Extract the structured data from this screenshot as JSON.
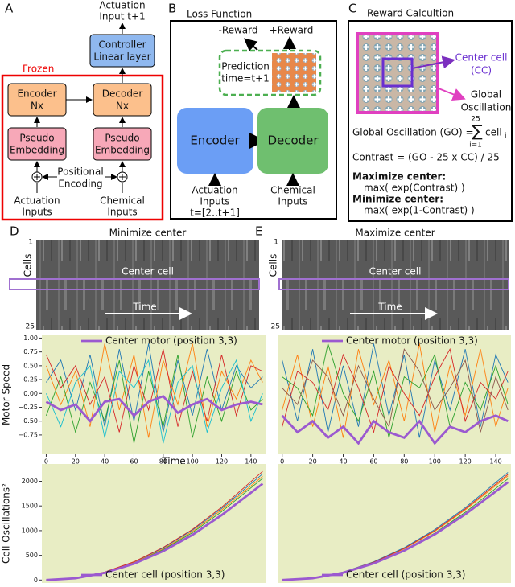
{
  "panel_a": {
    "label": "A",
    "output": [
      "Actuation",
      "Input t+1"
    ],
    "frozen": "Frozen",
    "controller": [
      "Controller",
      "Linear layer"
    ],
    "encoder": [
      "Encoder",
      "Nx"
    ],
    "decoder": [
      "Decoder",
      "Nx"
    ],
    "embed_left": [
      "Pseudo",
      "Embedding"
    ],
    "embed_right": [
      "Pseudo",
      "Embedding"
    ],
    "positional": [
      "Positional",
      "Encoding"
    ],
    "input_left": [
      "Actuation",
      "Inputs"
    ],
    "input_right": [
      "Chemical",
      "Inputs"
    ]
  },
  "panel_b": {
    "label": "B",
    "title": "Loss Function",
    "neg_reward": "-Reward",
    "pos_reward": "+Reward",
    "prediction": [
      "Prediction",
      "time=t+1"
    ],
    "encoder": "Encoder",
    "decoder": "Decoder",
    "input_left": [
      "Actuation",
      "Inputs",
      "t=[2..t+1]"
    ],
    "input_right": [
      "Chemical",
      "Inputs"
    ]
  },
  "panel_c": {
    "label": "C",
    "title": "Reward Calcultion",
    "center_cell": [
      "Center cell",
      "(CC)"
    ],
    "global": [
      "Global",
      "Oscillation"
    ],
    "go_formula": "Global Oscillation (GO) =",
    "sum_symbol": "∑",
    "sum_top": "25",
    "sum_bottom": "i=1",
    "sum_term": "cell",
    "sum_index": "i",
    "contrast": "Contrast = (GO - 25 x CC) / 25",
    "max_head": "Maximize center:",
    "max_expr": "max( exp(Contrast) )",
    "min_head": "Minimize center:",
    "min_expr": "max( exp(1-Contrast) )"
  },
  "heatmaps": [
    {
      "label": "D",
      "title": "Minimize center",
      "y_label": "Cells",
      "top_tick": 1,
      "bottom_tick": 25,
      "center": "Center cell",
      "time": "Time"
    },
    {
      "label": "E",
      "title": "Maximize center",
      "y_label": "Cells",
      "top_tick": 1,
      "bottom_tick": 25,
      "center": "Center cell",
      "time": "Time"
    }
  ],
  "chart_data": [
    {
      "type": "line",
      "y_label": "Motor Speed",
      "x_label": "Time",
      "legend": "upper center",
      "xlim": [
        -3,
        150
      ],
      "ylim": [
        -1.1,
        1.05
      ],
      "xticks": [
        0,
        20,
        40,
        60,
        80,
        100,
        120,
        140
      ],
      "yticks": [
        {
          "value": 1,
          "label": "1.00"
        },
        {
          "value": 0.75,
          "label": "0.75"
        },
        {
          "value": 0.5,
          "label": "0.50"
        },
        {
          "value": 0.25,
          "label": "0.25"
        },
        {
          "value": 0,
          "label": "0.00"
        },
        {
          "value": -0.25,
          "label": "−0.25"
        },
        {
          "value": -0.5,
          "label": "−0.50"
        },
        {
          "value": -0.75,
          "label": "−0.75"
        }
      ],
      "x": [
        0,
        10,
        20,
        30,
        40,
        50,
        60,
        70,
        80,
        90,
        100,
        110,
        120,
        130,
        140,
        148
      ],
      "series": [
        {
          "name": "Center motor (position 3,3)",
          "color": "#9b59d0",
          "values": [
            -0.15,
            -0.3,
            -0.2,
            -0.5,
            -0.15,
            -0.1,
            -0.4,
            -0.15,
            -0.05,
            -0.35,
            -0.2,
            -0.1,
            -0.3,
            -0.2,
            -0.15,
            -0.2
          ]
        },
        {
          "color": "#1f77b4",
          "values": [
            0.2,
            0.6,
            -0.3,
            0.7,
            -0.6,
            0.8,
            -0.5,
            0.9,
            -0.7,
            0.6,
            -0.4,
            0.8,
            -0.3,
            0.5,
            0.1,
            0.3
          ]
        },
        {
          "color": "#ff7f0e",
          "values": [
            0.5,
            -0.2,
            0.4,
            -0.6,
            0.9,
            -0.3,
            0.7,
            -0.8,
            0.6,
            -0.2,
            0.9,
            -0.6,
            0.4,
            -0.1,
            0.6,
            0.2
          ]
        },
        {
          "color": "#2ca02c",
          "values": [
            -0.4,
            0.3,
            -0.7,
            0.2,
            -0.5,
            0.6,
            -0.9,
            0.4,
            -0.6,
            0.7,
            -0.8,
            0.3,
            -0.5,
            0.4,
            -0.3,
            -0.1
          ]
        },
        {
          "color": "#d62728",
          "values": [
            0.7,
            0.1,
            0.5,
            -0.2,
            0.3,
            -0.7,
            0.5,
            -0.3,
            0.8,
            -0.6,
            0.4,
            -0.5,
            0.7,
            -0.4,
            0.5,
            0.4
          ]
        },
        {
          "color": "#17becf",
          "values": [
            0.0,
            -0.6,
            0.2,
            0.5,
            -0.8,
            0.4,
            0.1,
            0.6,
            -0.9,
            0.2,
            0.5,
            -0.7,
            0.1,
            0.6,
            -0.5,
            0.0
          ]
        }
      ]
    },
    {
      "type": "line",
      "legend": "upper center",
      "xlim": [
        -3,
        150
      ],
      "ylim": [
        -1.1,
        1.05
      ],
      "xticks": [
        0,
        20,
        40,
        60,
        80,
        100,
        120,
        140
      ],
      "x": [
        0,
        10,
        20,
        30,
        40,
        50,
        60,
        70,
        80,
        90,
        100,
        110,
        120,
        130,
        140,
        148
      ],
      "series": [
        {
          "name": "Center motor (position 3,3)",
          "color": "#9b59d0",
          "values": [
            -0.4,
            -0.7,
            -0.5,
            -0.8,
            -0.6,
            -0.9,
            -0.5,
            -0.7,
            -0.8,
            -0.5,
            -0.9,
            -0.6,
            -0.7,
            -0.5,
            -0.4,
            -0.5
          ]
        },
        {
          "color": "#1f77b4",
          "values": [
            0.6,
            -0.5,
            0.8,
            -0.7,
            0.5,
            -0.6,
            0.9,
            -0.4,
            0.7,
            -0.8,
            0.6,
            -0.3,
            0.8,
            -0.6,
            0.7,
            0.2
          ]
        },
        {
          "color": "#ff7f0e",
          "values": [
            -0.3,
            0.7,
            -0.6,
            0.5,
            -0.8,
            0.8,
            -0.2,
            0.6,
            -0.5,
            0.9,
            -0.7,
            0.5,
            -0.4,
            0.8,
            -0.6,
            0.1
          ]
        },
        {
          "color": "#2ca02c",
          "values": [
            0.3,
            0.1,
            -0.4,
            0.9,
            0.0,
            -0.5,
            0.4,
            -0.8,
            0.3,
            0.1,
            0.7,
            -0.6,
            0.2,
            -0.3,
            0.5,
            -0.2
          ]
        },
        {
          "color": "#d62728",
          "values": [
            -0.6,
            0.4,
            0.2,
            -0.3,
            0.7,
            0.1,
            -0.7,
            0.5,
            0.0,
            -0.4,
            0.3,
            0.8,
            -0.5,
            0.2,
            -0.1,
            0.4
          ]
        },
        {
          "color": "#8c564b",
          "values": [
            0.1,
            -0.2,
            0.6,
            0.3,
            -0.4,
            0.5,
            -0.1,
            -0.6,
            0.8,
            0.4,
            -0.3,
            0.1,
            0.6,
            -0.7,
            0.3,
            -0.3
          ]
        }
      ]
    },
    {
      "type": "line",
      "y_label": "Cell Oscillations²",
      "legend": "lower center",
      "xlim": [
        -3,
        150
      ],
      "ylim": [
        -60,
        2350
      ],
      "yticks": [
        0,
        500,
        1000,
        1500,
        2000
      ],
      "x": [
        0,
        20,
        40,
        60,
        80,
        100,
        120,
        148
      ],
      "series": [
        {
          "name": "Center cell (position 3,3)",
          "color": "#9b59d0",
          "values": [
            0,
            35,
            145,
            330,
            585,
            915,
            1315,
            1950
          ]
        },
        {
          "color": "#1f77b4",
          "values": [
            0,
            40,
            160,
            365,
            650,
            1010,
            1450,
            2150
          ]
        },
        {
          "color": "#ff7f0e",
          "values": [
            0,
            39,
            155,
            355,
            630,
            985,
            1420,
            2100
          ]
        },
        {
          "color": "#2ca02c",
          "values": [
            0,
            38,
            152,
            345,
            615,
            960,
            1385,
            2060
          ]
        },
        {
          "color": "#d62728",
          "values": [
            0,
            41,
            163,
            370,
            660,
            1025,
            1475,
            2200
          ]
        }
      ]
    },
    {
      "type": "line",
      "legend": "lower center",
      "xlim": [
        -3,
        150
      ],
      "ylim": [
        -60,
        2350
      ],
      "x": [
        0,
        20,
        40,
        60,
        80,
        100,
        120,
        148
      ],
      "series": [
        {
          "name": "Center cell (position 3,3)",
          "color": "#9b59d0",
          "values": [
            0,
            36,
            148,
            335,
            595,
            925,
            1330,
            1980
          ]
        },
        {
          "color": "#1f77b4",
          "values": [
            0,
            41,
            162,
            368,
            655,
            1020,
            1465,
            2180
          ]
        },
        {
          "color": "#ff7f0e",
          "values": [
            0,
            39,
            156,
            356,
            632,
            985,
            1420,
            2110
          ]
        },
        {
          "color": "#2ca02c",
          "values": [
            0,
            38,
            150,
            342,
            610,
            950,
            1370,
            2050
          ]
        },
        {
          "color": "#d62728",
          "values": [
            0,
            40,
            158,
            360,
            640,
            1000,
            1440,
            2140
          ]
        }
      ]
    }
  ]
}
